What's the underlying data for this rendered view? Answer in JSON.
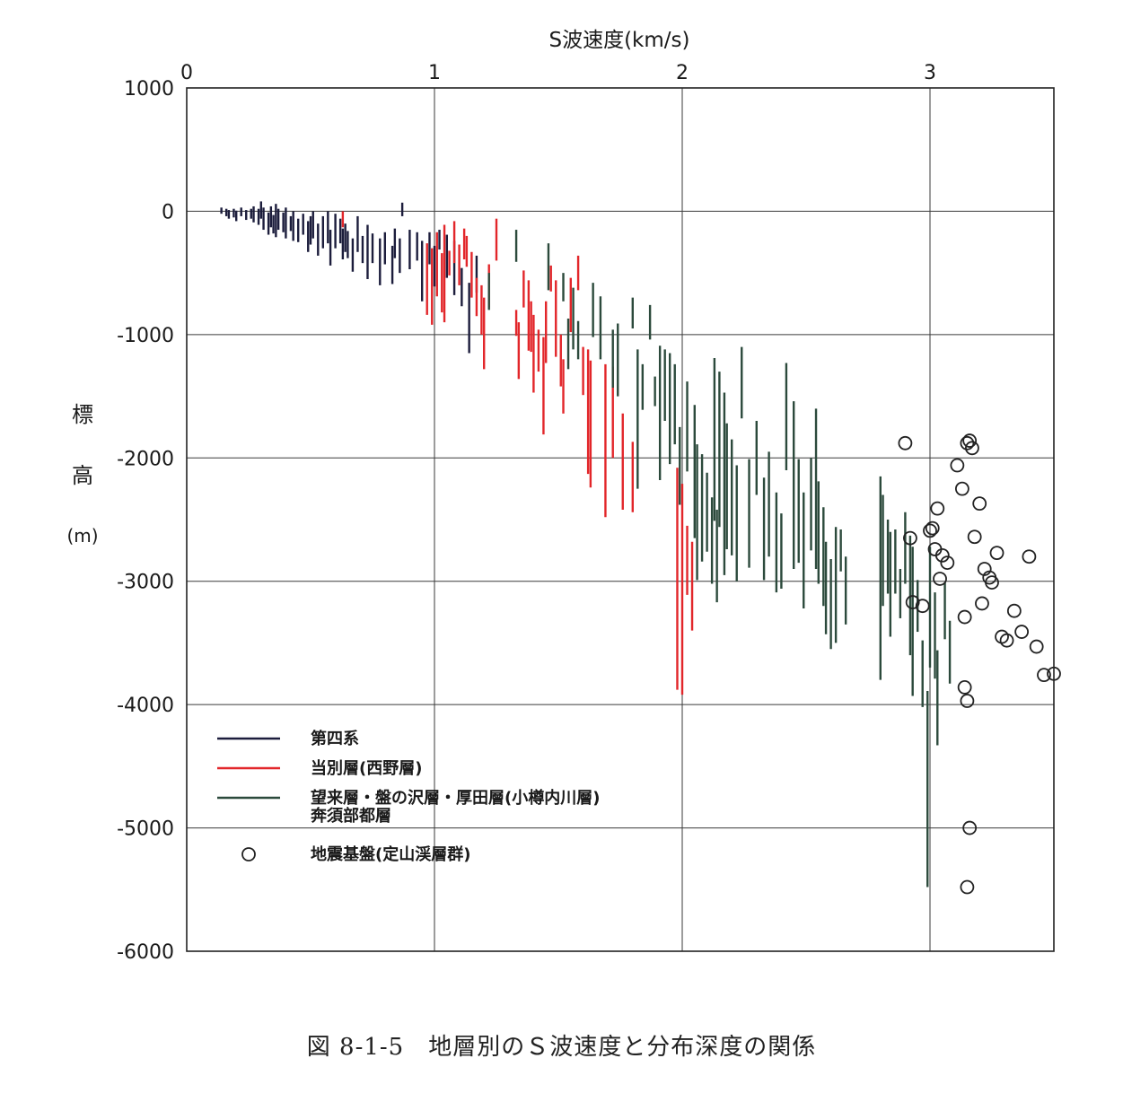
{
  "caption": "図 8-1-5　地層別のＳ波速度と分布深度の関係",
  "chart_data": {
    "type": "scatter",
    "title": "",
    "xlabel": "S波速度(km/s)",
    "ylabel_chars": [
      "標",
      "高"
    ],
    "yunit": "(m)",
    "xlim": [
      0,
      3.5
    ],
    "ylim": [
      -6000,
      1000
    ],
    "x_ticks": [
      0,
      1,
      2,
      3
    ],
    "x_tick_labels": [
      "0",
      "1",
      "2",
      "3"
    ],
    "y_ticks": [
      1000,
      0,
      -1000,
      -2000,
      -3000,
      -4000,
      -5000,
      -6000
    ],
    "y_tick_labels": [
      "1000",
      "0",
      "-1000",
      "-2000",
      "-3000",
      "-4000",
      "-5000",
      "-6000"
    ],
    "x_axis_position": "top",
    "grid": true,
    "legend_position": "lower-left",
    "colors": {
      "quaternary": "#1c1d3c",
      "tobetsu": "#e2262a",
      "boraigawa": "#2c4a3c",
      "basement": "#222222",
      "grid": "#3a3a3a"
    },
    "series": [
      {
        "name": "第四系",
        "kind": "range",
        "color_key": "quaternary",
        "ranges": [
          [
            0.14,
            30,
            -20
          ],
          [
            0.16,
            20,
            -40
          ],
          [
            0.17,
            10,
            -60
          ],
          [
            0.19,
            20,
            -50
          ],
          [
            0.2,
            5,
            -80
          ],
          [
            0.22,
            30,
            -40
          ],
          [
            0.24,
            10,
            -70
          ],
          [
            0.26,
            20,
            -60
          ],
          [
            0.27,
            40,
            -90
          ],
          [
            0.29,
            20,
            -110
          ],
          [
            0.3,
            80,
            -60
          ],
          [
            0.31,
            30,
            -150
          ],
          [
            0.33,
            -10,
            -190
          ],
          [
            0.34,
            40,
            -130
          ],
          [
            0.35,
            -30,
            -180
          ],
          [
            0.36,
            60,
            -210
          ],
          [
            0.37,
            20,
            -150
          ],
          [
            0.39,
            -10,
            -170
          ],
          [
            0.4,
            30,
            -220
          ],
          [
            0.42,
            -40,
            -160
          ],
          [
            0.43,
            0,
            -240
          ],
          [
            0.45,
            -60,
            -250
          ],
          [
            0.47,
            -20,
            -190
          ],
          [
            0.49,
            -80,
            -330
          ],
          [
            0.5,
            -40,
            -270
          ],
          [
            0.51,
            0,
            -220
          ],
          [
            0.53,
            -100,
            -360
          ],
          [
            0.55,
            -40,
            -300
          ],
          [
            0.57,
            0,
            -260
          ],
          [
            0.58,
            -150,
            -440
          ],
          [
            0.6,
            -20,
            -300
          ],
          [
            0.62,
            -60,
            -260
          ],
          [
            0.63,
            -140,
            -390
          ],
          [
            0.64,
            -100,
            -330
          ],
          [
            0.65,
            -160,
            -380
          ],
          [
            0.67,
            -220,
            -490
          ],
          [
            0.69,
            -40,
            -330
          ],
          [
            0.71,
            -200,
            -420
          ],
          [
            0.73,
            -110,
            -550
          ],
          [
            0.75,
            -180,
            -420
          ],
          [
            0.78,
            -220,
            -600
          ],
          [
            0.8,
            -170,
            -430
          ],
          [
            0.83,
            -280,
            -590
          ],
          [
            0.84,
            -140,
            -380
          ],
          [
            0.86,
            -220,
            -500
          ],
          [
            0.87,
            70,
            -40
          ],
          [
            0.9,
            -150,
            -470
          ],
          [
            0.93,
            -170,
            -400
          ],
          [
            0.95,
            -240,
            -730
          ],
          [
            0.98,
            -170,
            -430
          ],
          [
            1.0,
            -280,
            -610
          ],
          [
            1.02,
            -150,
            -310
          ],
          [
            1.05,
            -190,
            -540
          ],
          [
            1.08,
            -240,
            -680
          ],
          [
            1.11,
            -460,
            -770
          ],
          [
            1.14,
            -580,
            -1150
          ],
          [
            1.17,
            -360,
            -660
          ]
        ]
      },
      {
        "name": "当別層(西野層)",
        "kind": "range",
        "color_key": "tobetsu",
        "ranges": [
          [
            0.63,
            0,
            -130
          ],
          [
            0.97,
            -260,
            -840
          ],
          [
            0.99,
            -300,
            -920
          ],
          [
            1.01,
            -170,
            -690
          ],
          [
            1.03,
            -340,
            -820
          ],
          [
            1.04,
            -110,
            -900
          ],
          [
            1.06,
            -320,
            -520
          ],
          [
            1.08,
            -80,
            -420
          ],
          [
            1.1,
            -270,
            -600
          ],
          [
            1.12,
            -140,
            -390
          ],
          [
            1.13,
            -200,
            -450
          ],
          [
            1.15,
            -330,
            -700
          ],
          [
            1.17,
            -540,
            -850
          ],
          [
            1.19,
            -600,
            -1000
          ],
          [
            1.2,
            -700,
            -1280
          ],
          [
            1.22,
            -430,
            -780
          ],
          [
            1.25,
            -60,
            -400
          ],
          [
            1.33,
            -800,
            -1010
          ],
          [
            1.34,
            -900,
            -1360
          ],
          [
            1.36,
            -480,
            -780
          ],
          [
            1.38,
            -560,
            -1130
          ],
          [
            1.39,
            -730,
            -1140
          ],
          [
            1.4,
            -840,
            -1470
          ],
          [
            1.42,
            -960,
            -1300
          ],
          [
            1.44,
            -1020,
            -1810
          ],
          [
            1.45,
            -730,
            -1230
          ],
          [
            1.47,
            -440,
            -650
          ],
          [
            1.49,
            -560,
            -1180
          ],
          [
            1.51,
            -1000,
            -1420
          ],
          [
            1.52,
            -1200,
            -1640
          ],
          [
            1.55,
            -540,
            -980
          ],
          [
            1.58,
            -360,
            -640
          ],
          [
            1.6,
            -1100,
            -1490
          ],
          [
            1.62,
            -1120,
            -2130
          ],
          [
            1.63,
            -1210,
            -2240
          ],
          [
            1.69,
            -1240,
            -2480
          ],
          [
            1.72,
            -1260,
            -2000
          ],
          [
            1.76,
            -1640,
            -2420
          ],
          [
            1.8,
            -1870,
            -2440
          ],
          [
            1.98,
            -2080,
            -3880
          ],
          [
            2.0,
            -2210,
            -3920
          ],
          [
            2.02,
            -2550,
            -3110
          ],
          [
            2.04,
            -2680,
            -3400
          ]
        ]
      },
      {
        "name": "望来層・盤の沢層・厚田層(小樽内川層) 奔須部都層",
        "kind": "range",
        "color_key": "boraigawa",
        "ranges": [
          [
            1.22,
            -500,
            -800
          ],
          [
            1.33,
            -150,
            -410
          ],
          [
            1.46,
            -260,
            -640
          ],
          [
            1.52,
            -500,
            -730
          ],
          [
            1.54,
            -870,
            -1280
          ],
          [
            1.56,
            -620,
            -1120
          ],
          [
            1.58,
            -890,
            -1200
          ],
          [
            1.64,
            -580,
            -1020
          ],
          [
            1.67,
            -690,
            -1200
          ],
          [
            1.72,
            -960,
            -1430
          ],
          [
            1.74,
            -910,
            -1500
          ],
          [
            1.8,
            -700,
            -950
          ],
          [
            1.82,
            -1120,
            -2250
          ],
          [
            1.84,
            -1240,
            -1610
          ],
          [
            1.87,
            -760,
            -1040
          ],
          [
            1.89,
            -1340,
            -1580
          ],
          [
            1.91,
            -1090,
            -2180
          ],
          [
            1.93,
            -1120,
            -1700
          ],
          [
            1.95,
            -1150,
            -2050
          ],
          [
            1.97,
            -1240,
            -1890
          ],
          [
            1.99,
            -1750,
            -2380
          ],
          [
            2.02,
            -1380,
            -2110
          ],
          [
            2.05,
            -1570,
            -2650
          ],
          [
            2.06,
            -1890,
            -2990
          ],
          [
            2.08,
            -1970,
            -2840
          ],
          [
            2.1,
            -2120,
            -2760
          ],
          [
            2.12,
            -2320,
            -3020
          ],
          [
            2.14,
            -2420,
            -3170
          ],
          [
            2.13,
            -1190,
            -2510
          ],
          [
            2.15,
            -1300,
            -2560
          ],
          [
            2.17,
            -1470,
            -2950
          ],
          [
            2.18,
            -1720,
            -2740
          ],
          [
            2.2,
            -1850,
            -2790
          ],
          [
            2.22,
            -2060,
            -3000
          ],
          [
            2.24,
            -1100,
            -1680
          ],
          [
            2.27,
            -2010,
            -2890
          ],
          [
            2.3,
            -1700,
            -2300
          ],
          [
            2.33,
            -2160,
            -2990
          ],
          [
            2.35,
            -1950,
            -2800
          ],
          [
            2.38,
            -2280,
            -3090
          ],
          [
            2.4,
            -2450,
            -3060
          ],
          [
            2.42,
            -1230,
            -2100
          ],
          [
            2.45,
            -1540,
            -2900
          ],
          [
            2.47,
            -2010,
            -2850
          ],
          [
            2.49,
            -2280,
            -3220
          ],
          [
            2.52,
            -2000,
            -2750
          ],
          [
            2.54,
            -1600,
            -2900
          ],
          [
            2.55,
            -2190,
            -3020
          ],
          [
            2.57,
            -2400,
            -3200
          ],
          [
            2.58,
            -2680,
            -3430
          ],
          [
            2.6,
            -2820,
            -3550
          ],
          [
            2.62,
            -2560,
            -3500
          ],
          [
            2.64,
            -2580,
            -2920
          ],
          [
            2.66,
            -2800,
            -3350
          ],
          [
            2.8,
            -2150,
            -3800
          ],
          [
            2.81,
            -2300,
            -3200
          ],
          [
            2.83,
            -2500,
            -3100
          ],
          [
            2.84,
            -2600,
            -3450
          ],
          [
            2.86,
            -2580,
            -3100
          ],
          [
            2.88,
            -2900,
            -3300
          ],
          [
            2.9,
            -2440,
            -3020
          ],
          [
            2.92,
            -2630,
            -3600
          ],
          [
            2.93,
            -2720,
            -3930
          ],
          [
            2.95,
            -2990,
            -3410
          ],
          [
            2.97,
            -3480,
            -4020
          ],
          [
            2.99,
            -3890,
            -5480
          ],
          [
            3.0,
            -2720,
            -3700
          ],
          [
            3.02,
            -3090,
            -3790
          ],
          [
            3.03,
            -3560,
            -4330
          ],
          [
            3.06,
            -3010,
            -3470
          ],
          [
            3.08,
            -3320,
            -3830
          ]
        ]
      },
      {
        "name": "地震基盤(定山渓層群)",
        "kind": "points",
        "color_key": "basement",
        "points": [
          [
            2.9,
            -1880
          ],
          [
            2.92,
            -2650
          ],
          [
            2.93,
            -3170
          ],
          [
            2.97,
            -3200
          ],
          [
            3.0,
            -2590
          ],
          [
            3.01,
            -2570
          ],
          [
            3.02,
            -2740
          ],
          [
            3.03,
            -2410
          ],
          [
            3.04,
            -2980
          ],
          [
            3.05,
            -2790
          ],
          [
            3.07,
            -2850
          ],
          [
            3.11,
            -2060
          ],
          [
            3.13,
            -2250
          ],
          [
            3.14,
            -3290
          ],
          [
            3.15,
            -1880
          ],
          [
            3.16,
            -1860
          ],
          [
            3.17,
            -1920
          ],
          [
            3.18,
            -2640
          ],
          [
            3.2,
            -2370
          ],
          [
            3.21,
            -3180
          ],
          [
            3.22,
            -2900
          ],
          [
            3.24,
            -2970
          ],
          [
            3.25,
            -3010
          ],
          [
            3.27,
            -2770
          ],
          [
            3.29,
            -3450
          ],
          [
            3.31,
            -3480
          ],
          [
            3.34,
            -3240
          ],
          [
            3.37,
            -3410
          ],
          [
            3.4,
            -2800
          ],
          [
            3.43,
            -3530
          ],
          [
            3.46,
            -3760
          ],
          [
            3.5,
            -3750
          ],
          [
            3.14,
            -3860
          ],
          [
            3.15,
            -3970
          ],
          [
            3.16,
            -5000
          ],
          [
            3.15,
            -5480
          ]
        ]
      }
    ]
  }
}
